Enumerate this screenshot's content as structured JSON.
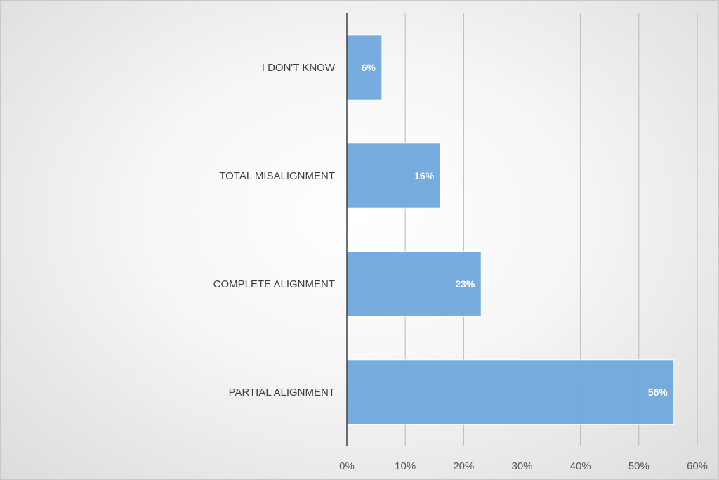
{
  "chart_data": {
    "type": "bar",
    "orientation": "horizontal",
    "title": "",
    "xlabel": "",
    "ylabel": "",
    "categories": [
      "I DON'T KNOW",
      "TOTAL MISALIGNMENT",
      "COMPLETE ALIGNMENT",
      "PARTIAL ALIGNMENT"
    ],
    "values": [
      6,
      16,
      23,
      56
    ],
    "data_labels": [
      "6%",
      "16%",
      "23%",
      "56%"
    ],
    "xlim": [
      0,
      60
    ],
    "ticks": [
      0,
      10,
      20,
      30,
      40,
      50,
      60
    ],
    "tick_labels": [
      "0%",
      "10%",
      "20%",
      "30%",
      "40%",
      "50%",
      "60%"
    ],
    "grid": "vertical",
    "legend": "none",
    "bar_color": "#6fa8dc"
  }
}
